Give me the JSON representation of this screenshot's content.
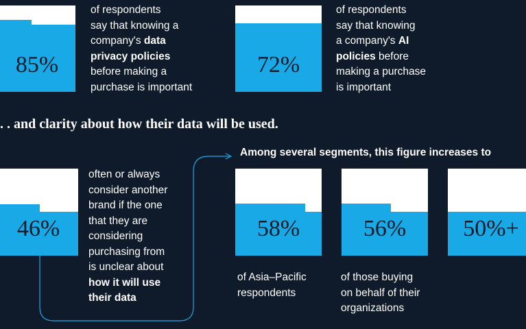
{
  "chart_data": {
    "type": "bar",
    "section_heading": ". . and clarity about how their data will be used.",
    "segments_heading": "Among several segments, this figure increases to",
    "stats": [
      {
        "value_label": "85%",
        "value": 85,
        "description": [
          "of respondents",
          "say that knowing a",
          "company's ",
          "data",
          "privacy policies",
          "before making a",
          "purchase is important"
        ]
      },
      {
        "value_label": "72%",
        "value": 72,
        "description": [
          "of respondents",
          "say that knowing",
          "a company's ",
          "AI",
          "policies",
          " before",
          "making a purchase",
          "is important"
        ]
      },
      {
        "value_label": "46%",
        "value": 46,
        "description": [
          "often or always",
          "consider another",
          "brand if the one",
          "that they are",
          "considering",
          "purchasing from",
          "is unclear about",
          "how it will use",
          "their data"
        ]
      },
      {
        "value_label": "58%",
        "value": 58,
        "description": [
          "of Asia–Pacific",
          "respondents"
        ]
      },
      {
        "value_label": "56%",
        "value": 56,
        "description": [
          "of those buying",
          "on behalf of their",
          "organizations"
        ]
      },
      {
        "value_label": "50%+",
        "value": 50,
        "description": []
      }
    ]
  },
  "colors": {
    "background": "#0f1b2a",
    "fill": "#19a9e6",
    "box": "#ffffff",
    "text": "#ffffff",
    "connector": "#19a9e6"
  }
}
